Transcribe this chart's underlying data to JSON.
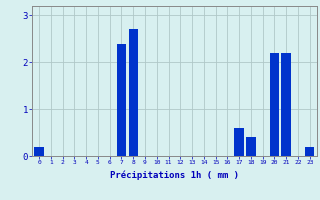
{
  "hours": [
    0,
    1,
    2,
    3,
    4,
    5,
    6,
    7,
    8,
    9,
    10,
    11,
    12,
    13,
    14,
    15,
    16,
    17,
    18,
    19,
    20,
    21,
    22,
    23
  ],
  "values": [
    0.2,
    0.0,
    0.0,
    0.0,
    0.0,
    0.0,
    0.0,
    2.4,
    2.7,
    0.0,
    0.0,
    0.0,
    0.0,
    0.0,
    0.0,
    0.0,
    0.0,
    0.6,
    0.4,
    0.0,
    2.2,
    2.2,
    0.0,
    0.2
  ],
  "bar_color": "#0033cc",
  "bg_color": "#d8f0f0",
  "grid_color": "#b0c8c8",
  "xlabel": "Précipitations 1h ( mm )",
  "xlabel_color": "#0000bb",
  "tick_color": "#0000bb",
  "ylim": [
    0,
    3.2
  ],
  "yticks": [
    0,
    1,
    2,
    3
  ],
  "fig_bg": "#d8f0f0",
  "figwidth": 3.2,
  "figheight": 2.0,
  "dpi": 100
}
